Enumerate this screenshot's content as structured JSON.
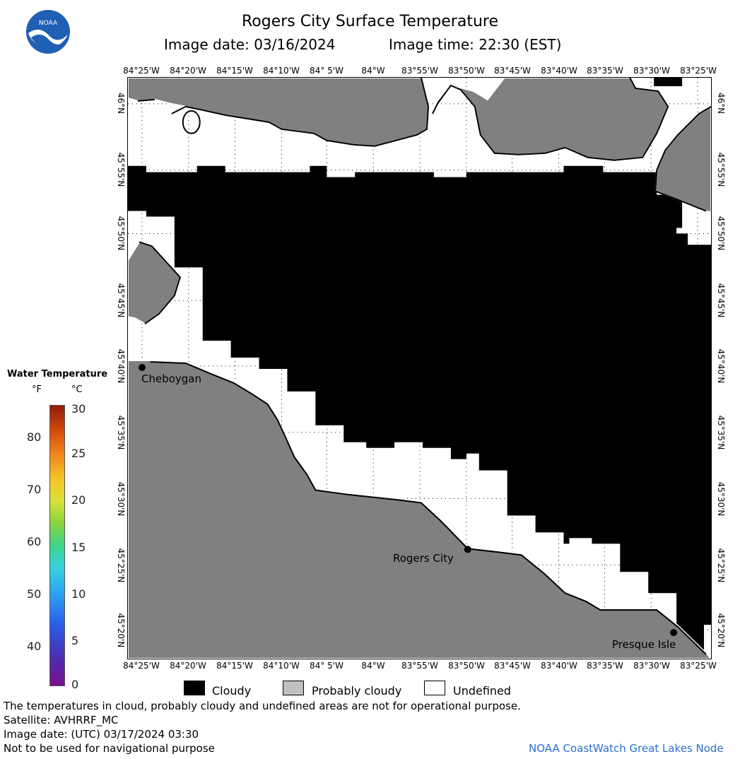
{
  "header": {
    "title": "Rogers City Surface Temperature",
    "image_date": "Image date: 03/16/2024",
    "image_time": "Image time: 22:30 (EST)"
  },
  "map": {
    "lon_ticks": [
      "84°25'W",
      "84°20'W",
      "84°15'W",
      "84°10'W",
      "84° 5'W",
      "84°W",
      "83°55'W",
      "83°50'W",
      "83°45'W",
      "83°40'W",
      "83°35'W",
      "83°30'W",
      "83°25'W"
    ],
    "lat_ticks": [
      "46°N",
      "45°55'N",
      "45°50'N",
      "45°45'N",
      "45°40'N",
      "45°35'N",
      "45°30'N",
      "45°25'N",
      "45°20'N"
    ],
    "cities": [
      {
        "name": "Cheboygan"
      },
      {
        "name": "Rogers City"
      },
      {
        "name": "Presque Isle"
      }
    ]
  },
  "colorbar": {
    "title": "Water Temperature",
    "unit_f": "°F",
    "unit_c": "°C",
    "f_labels": [
      "80",
      "70",
      "60",
      "50",
      "40"
    ],
    "c_labels": [
      "30",
      "25",
      "20",
      "15",
      "10",
      "5",
      "0"
    ]
  },
  "legend": {
    "cloudy": "Cloudy",
    "probably_cloudy": "Probably cloudy",
    "undefined": "Undefined",
    "colors": {
      "cloudy": "#000000",
      "probably_cloudy": "#c0c0c0",
      "undefined": "#ffffff",
      "land": "#808080"
    }
  },
  "footer": {
    "disclaimer": "The temperatures in cloud, probably cloudy and undefined areas are not for operational purpose.",
    "satellite": "Satellite: AVHRRF_MC",
    "utc_date": "Image date: (UTC) 03/17/2024  03:30",
    "nav_note": "Not to be used for navigational purpose",
    "credit": "NOAA CoastWatch Great Lakes Node"
  }
}
